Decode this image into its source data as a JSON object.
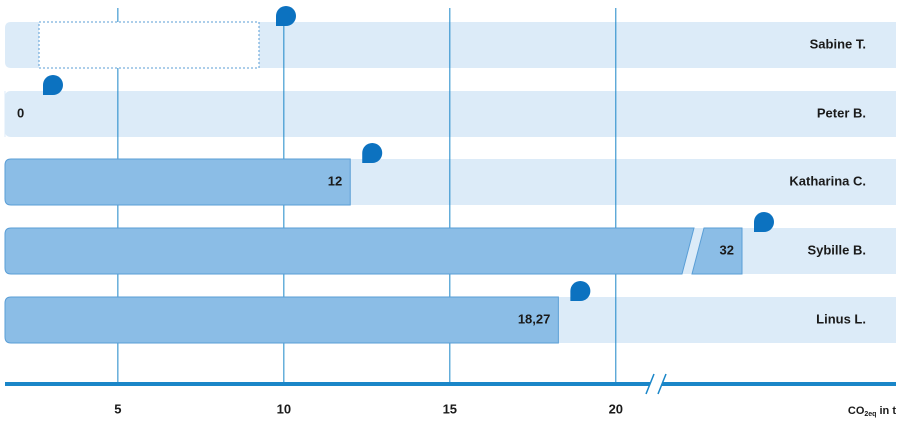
{
  "chart_data": {
    "type": "bar",
    "orientation": "horizontal",
    "categories": [
      "Sabine T.",
      "Peter B.",
      "Katharina C.",
      "Sybille B.",
      "Linus L."
    ],
    "values": [
      null,
      0,
      12,
      32,
      18.27
    ],
    "value_labels": [
      null,
      "0",
      "12",
      "32",
      "18,27"
    ],
    "color": "#8bbde6",
    "track_color": "#dcebf8",
    "axis_color": "#1a86c8",
    "xlim": [
      1.6,
      21
    ],
    "xticks": [
      5,
      10,
      15,
      20
    ],
    "axis_break": true,
    "grid": true,
    "x_label": "CO",
    "x_label_sub": "2eq",
    "x_label_suffix": " in t"
  }
}
